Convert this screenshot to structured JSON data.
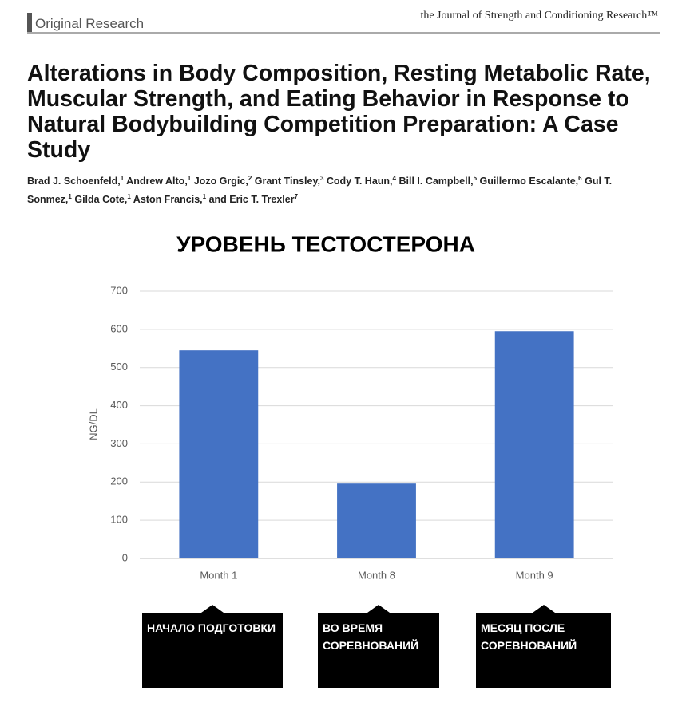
{
  "header": {
    "section": "Original Research",
    "journal": "the Journal of Strength and Conditioning Research™",
    "title": "Alterations in Body Composition, Resting Metabolic Rate, Muscular Strength, and Eating Behavior in Response to Natural Bodybuilding Competition Preparation: A Case Study",
    "authors": [
      {
        "name": "Brad J. Schoenfeld,",
        "aff": "1"
      },
      {
        "name": "Andrew Alto,",
        "aff": "1"
      },
      {
        "name": "Jozo Grgic,",
        "aff": "2"
      },
      {
        "name": "Grant Tinsley,",
        "aff": "3"
      },
      {
        "name": "Cody T. Haun,",
        "aff": "4"
      },
      {
        "name": "Bill I. Campbell,",
        "aff": "5"
      },
      {
        "name": "Guillermo Escalante,",
        "aff": "6"
      },
      {
        "name": "Gul T. Sonmez,",
        "aff": "1"
      },
      {
        "name": "Gilda Cote,",
        "aff": "1"
      },
      {
        "name": "Aston Francis,",
        "aff": "1"
      },
      {
        "name": "and Eric T. Trexler",
        "aff": "7"
      }
    ]
  },
  "chart_data": {
    "type": "bar",
    "title": "УРОВЕНЬ ТЕСТОСТЕРОНА",
    "y_label": "NG/DL",
    "categories": [
      "Month 1",
      "Month 8",
      "Month 9"
    ],
    "values": [
      545,
      196,
      595
    ],
    "color": "#4472c4",
    "ylim": [
      0,
      700
    ],
    "yticks": [
      0,
      100,
      200,
      300,
      400,
      500,
      600,
      700
    ],
    "grid": true,
    "annotations": [
      "НАЧАЛО ПОДГОТОВКИ",
      "ВО ВРЕМЯ СОРЕВНОВАНИЙ",
      "МЕСЯЦ ПОСЛЕ СОРЕВНОВАНИЙ"
    ]
  }
}
